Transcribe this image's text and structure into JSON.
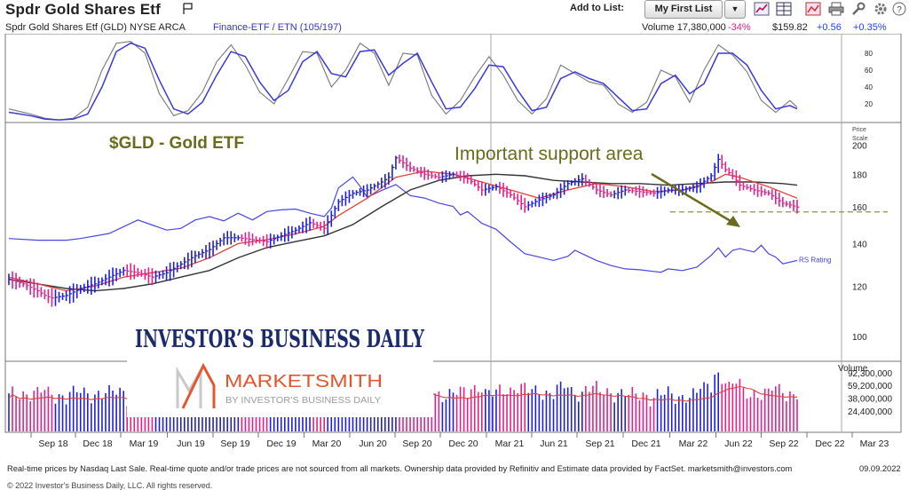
{
  "header": {
    "title": "Spdr Gold Shares Etf",
    "add_to_list_label": "Add to List:",
    "list_button_label": "My First List"
  },
  "info": {
    "symbol_line": "Spdr Gold Shares Etf   (GLD) NYSE ARCA",
    "sector": "Finance-ETF / ETN (105/197)",
    "volume": "Volume 17,380,000",
    "volume_change": "-34%",
    "price": "$159.82",
    "change": "+0.56",
    "change_pct": "+0.35%"
  },
  "footer": {
    "disclaimer": "Real-time prices by Nasdaq Last Sale. Real-time quote and/or trade prices are not sourced from all markets. Ownership data provided by Refinitiv and Estimate data provided by FactSet. marketsmith@investors.com",
    "date": "09.09.2022",
    "copyright": "© 2022 Investor's Business Daily, LLC. All rights reserved."
  },
  "colors": {
    "up": "#1f1fd6",
    "down": "#e0218a",
    "rs": "#4646e6",
    "ma50": "#e0413a",
    "ma200": "#333333"
  },
  "chart_data": {
    "type": "line",
    "x_labels": [
      "Sep 18",
      "Dec 18",
      "Mar 19",
      "Jun 19",
      "Sep 19",
      "Dec 19",
      "Mar 20",
      "Jun 20",
      "Sep 20",
      "Dec 20",
      "Mar 21",
      "Jun 21",
      "Sep 21",
      "Dec 21",
      "Mar 22",
      "Jun 22",
      "Sep 22",
      "Dec 22",
      "Mar 23"
    ],
    "price_panel": {
      "scale_label": "Price Scale",
      "y_ticks": [
        100,
        120,
        140,
        160,
        180,
        200
      ],
      "ylim": [
        92,
        215
      ],
      "log_scale": true,
      "price": [
        [
          0,
          123
        ],
        [
          2,
          121
        ],
        [
          4,
          118
        ],
        [
          5,
          116
        ],
        [
          6,
          115
        ],
        [
          8,
          116
        ],
        [
          10,
          119
        ],
        [
          12,
          121
        ],
        [
          14,
          124
        ],
        [
          16,
          127
        ],
        [
          18,
          126
        ],
        [
          20,
          124
        ],
        [
          22,
          126
        ],
        [
          24,
          130
        ],
        [
          26,
          134
        ],
        [
          28,
          137
        ],
        [
          30,
          143
        ],
        [
          32,
          143
        ],
        [
          34,
          142
        ],
        [
          36,
          141
        ],
        [
          38,
          144
        ],
        [
          40,
          147
        ],
        [
          42,
          151
        ],
        [
          44,
          148
        ],
        [
          45,
          155
        ],
        [
          46,
          163
        ],
        [
          48,
          168
        ],
        [
          50,
          170
        ],
        [
          52,
          175
        ],
        [
          53,
          178
        ],
        [
          54,
          191
        ],
        [
          56,
          184
        ],
        [
          58,
          180
        ],
        [
          60,
          178
        ],
        [
          62,
          180
        ],
        [
          64,
          177
        ],
        [
          66,
          170
        ],
        [
          68,
          172
        ],
        [
          70,
          167
        ],
        [
          72,
          160
        ],
        [
          74,
          164
        ],
        [
          76,
          167
        ],
        [
          78,
          174
        ],
        [
          80,
          177
        ],
        [
          82,
          170
        ],
        [
          84,
          167
        ],
        [
          86,
          170
        ],
        [
          88,
          169
        ],
        [
          90,
          168
        ],
        [
          92,
          170
        ],
        [
          94,
          170
        ],
        [
          96,
          172
        ],
        [
          98,
          179
        ],
        [
          99,
          190
        ],
        [
          100,
          183
        ],
        [
          101,
          179
        ],
        [
          102,
          173
        ],
        [
          104,
          170
        ],
        [
          106,
          168
        ],
        [
          108,
          162
        ],
        [
          109,
          161
        ],
        [
          110,
          159.82
        ]
      ],
      "ma50": [
        [
          0,
          124
        ],
        [
          4,
          121
        ],
        [
          8,
          118
        ],
        [
          12,
          120
        ],
        [
          16,
          124
        ],
        [
          20,
          126
        ],
        [
          24,
          128
        ],
        [
          28,
          133
        ],
        [
          32,
          140
        ],
        [
          36,
          142
        ],
        [
          40,
          145
        ],
        [
          44,
          149
        ],
        [
          46,
          155
        ],
        [
          50,
          165
        ],
        [
          54,
          178
        ],
        [
          58,
          182
        ],
        [
          62,
          180
        ],
        [
          66,
          175
        ],
        [
          70,
          170
        ],
        [
          74,
          165
        ],
        [
          78,
          170
        ],
        [
          82,
          174
        ],
        [
          86,
          172
        ],
        [
          90,
          169
        ],
        [
          94,
          170
        ],
        [
          98,
          175
        ],
        [
          100,
          180
        ],
        [
          102,
          178
        ],
        [
          106,
          172
        ],
        [
          110,
          165
        ]
      ],
      "ma200": [
        [
          0,
          123
        ],
        [
          4,
          121
        ],
        [
          8,
          119
        ],
        [
          12,
          118
        ],
        [
          16,
          119
        ],
        [
          20,
          121
        ],
        [
          24,
          124
        ],
        [
          28,
          127
        ],
        [
          32,
          133
        ],
        [
          36,
          138
        ],
        [
          40,
          141
        ],
        [
          44,
          144
        ],
        [
          48,
          150
        ],
        [
          52,
          160
        ],
        [
          56,
          170
        ],
        [
          60,
          176
        ],
        [
          64,
          179
        ],
        [
          68,
          180
        ],
        [
          72,
          179
        ],
        [
          76,
          176
        ],
        [
          80,
          175
        ],
        [
          84,
          174
        ],
        [
          88,
          174
        ],
        [
          92,
          173
        ],
        [
          96,
          174
        ],
        [
          100,
          175
        ],
        [
          104,
          175
        ],
        [
          108,
          174
        ],
        [
          110,
          173
        ]
      ],
      "rs_line_name": "RS Rating",
      "rs": [
        [
          0,
          6
        ],
        [
          4,
          4
        ],
        [
          8,
          4
        ],
        [
          10,
          6
        ],
        [
          14,
          12
        ],
        [
          16,
          20
        ],
        [
          18,
          28
        ],
        [
          20,
          22
        ],
        [
          22,
          16
        ],
        [
          24,
          18
        ],
        [
          26,
          28
        ],
        [
          28,
          32
        ],
        [
          30,
          27
        ],
        [
          32,
          36
        ],
        [
          34,
          28
        ],
        [
          36,
          38
        ],
        [
          38,
          40
        ],
        [
          40,
          41
        ],
        [
          42,
          36
        ],
        [
          44,
          32
        ],
        [
          45,
          42
        ],
        [
          46,
          66
        ],
        [
          48,
          79
        ],
        [
          49,
          68
        ],
        [
          50,
          55
        ],
        [
          52,
          63
        ],
        [
          54,
          70
        ],
        [
          56,
          57
        ],
        [
          58,
          54
        ],
        [
          60,
          48
        ],
        [
          62,
          44
        ],
        [
          63,
          34
        ],
        [
          64,
          38
        ],
        [
          66,
          24
        ],
        [
          68,
          17
        ],
        [
          70,
          2
        ],
        [
          72,
          -12
        ],
        [
          74,
          -16
        ],
        [
          76,
          -20
        ],
        [
          78,
          -15
        ],
        [
          79,
          -8
        ],
        [
          80,
          -12
        ],
        [
          82,
          -20
        ],
        [
          84,
          -26
        ],
        [
          86,
          -30
        ],
        [
          88,
          -31
        ],
        [
          90,
          -33
        ],
        [
          91,
          -34
        ],
        [
          92,
          -30
        ],
        [
          94,
          -32
        ],
        [
          96,
          -28
        ],
        [
          98,
          -14
        ],
        [
          99,
          -5
        ],
        [
          100,
          -16
        ],
        [
          101,
          -8
        ],
        [
          102,
          -6
        ],
        [
          104,
          -10
        ],
        [
          105,
          -2
        ],
        [
          106,
          -12
        ],
        [
          107,
          -16
        ],
        [
          108,
          -24
        ],
        [
          110,
          -20
        ]
      ],
      "support_level": 157,
      "annotations": [
        "$GLD - Gold ETF",
        "Important support area"
      ]
    },
    "oscillator_panel": {
      "y_ticks": [
        20,
        40,
        60,
        80
      ],
      "ylim": [
        0,
        100
      ],
      "fast": [
        [
          0,
          14
        ],
        [
          3,
          8
        ],
        [
          5,
          3
        ],
        [
          7,
          1
        ],
        [
          9,
          3
        ],
        [
          11,
          16
        ],
        [
          13,
          60
        ],
        [
          15,
          92
        ],
        [
          17,
          94
        ],
        [
          19,
          80
        ],
        [
          21,
          32
        ],
        [
          23,
          6
        ],
        [
          25,
          12
        ],
        [
          27,
          34
        ],
        [
          29,
          70
        ],
        [
          31,
          90
        ],
        [
          33,
          66
        ],
        [
          35,
          34
        ],
        [
          37,
          20
        ],
        [
          39,
          50
        ],
        [
          41,
          82
        ],
        [
          43,
          80
        ],
        [
          45,
          40
        ],
        [
          47,
          60
        ],
        [
          49,
          92
        ],
        [
          51,
          80
        ],
        [
          53,
          42
        ],
        [
          55,
          80
        ],
        [
          57,
          78
        ],
        [
          59,
          30
        ],
        [
          61,
          8
        ],
        [
          63,
          24
        ],
        [
          65,
          52
        ],
        [
          67,
          76
        ],
        [
          69,
          54
        ],
        [
          71,
          24
        ],
        [
          73,
          8
        ],
        [
          75,
          26
        ],
        [
          77,
          66
        ],
        [
          79,
          56
        ],
        [
          81,
          46
        ],
        [
          83,
          42
        ],
        [
          85,
          20
        ],
        [
          87,
          10
        ],
        [
          89,
          22
        ],
        [
          91,
          60
        ],
        [
          93,
          52
        ],
        [
          95,
          22
        ],
        [
          97,
          60
        ],
        [
          99,
          90
        ],
        [
          101,
          78
        ],
        [
          103,
          58
        ],
        [
          105,
          24
        ],
        [
          107,
          10
        ],
        [
          109,
          24
        ],
        [
          110,
          16
        ]
      ],
      "slow": [
        [
          0,
          10
        ],
        [
          3,
          6
        ],
        [
          5,
          2
        ],
        [
          7,
          1
        ],
        [
          9,
          2
        ],
        [
          11,
          8
        ],
        [
          13,
          40
        ],
        [
          15,
          82
        ],
        [
          17,
          92
        ],
        [
          19,
          86
        ],
        [
          21,
          48
        ],
        [
          23,
          14
        ],
        [
          25,
          8
        ],
        [
          27,
          22
        ],
        [
          29,
          54
        ],
        [
          31,
          82
        ],
        [
          33,
          76
        ],
        [
          35,
          46
        ],
        [
          37,
          24
        ],
        [
          39,
          36
        ],
        [
          41,
          70
        ],
        [
          43,
          82
        ],
        [
          45,
          56
        ],
        [
          47,
          52
        ],
        [
          49,
          82
        ],
        [
          51,
          84
        ],
        [
          53,
          54
        ],
        [
          55,
          68
        ],
        [
          57,
          80
        ],
        [
          59,
          46
        ],
        [
          61,
          14
        ],
        [
          63,
          16
        ],
        [
          65,
          38
        ],
        [
          67,
          66
        ],
        [
          69,
          64
        ],
        [
          71,
          36
        ],
        [
          73,
          12
        ],
        [
          75,
          16
        ],
        [
          77,
          50
        ],
        [
          79,
          58
        ],
        [
          81,
          50
        ],
        [
          83,
          44
        ],
        [
          85,
          28
        ],
        [
          87,
          12
        ],
        [
          89,
          14
        ],
        [
          91,
          44
        ],
        [
          93,
          54
        ],
        [
          95,
          32
        ],
        [
          97,
          44
        ],
        [
          99,
          80
        ],
        [
          101,
          80
        ],
        [
          103,
          66
        ],
        [
          105,
          36
        ],
        [
          107,
          14
        ],
        [
          109,
          18
        ],
        [
          110,
          14
        ]
      ]
    },
    "volume_panel": {
      "label": "Volume",
      "y_ticks": [
        "24,400,000",
        "38,000,000",
        "59,200,000",
        "92,300,000"
      ],
      "y_tick_values": [
        24400000,
        38000000,
        59200000,
        92300000
      ],
      "ylim": [
        12000000,
        125000000
      ]
    }
  }
}
